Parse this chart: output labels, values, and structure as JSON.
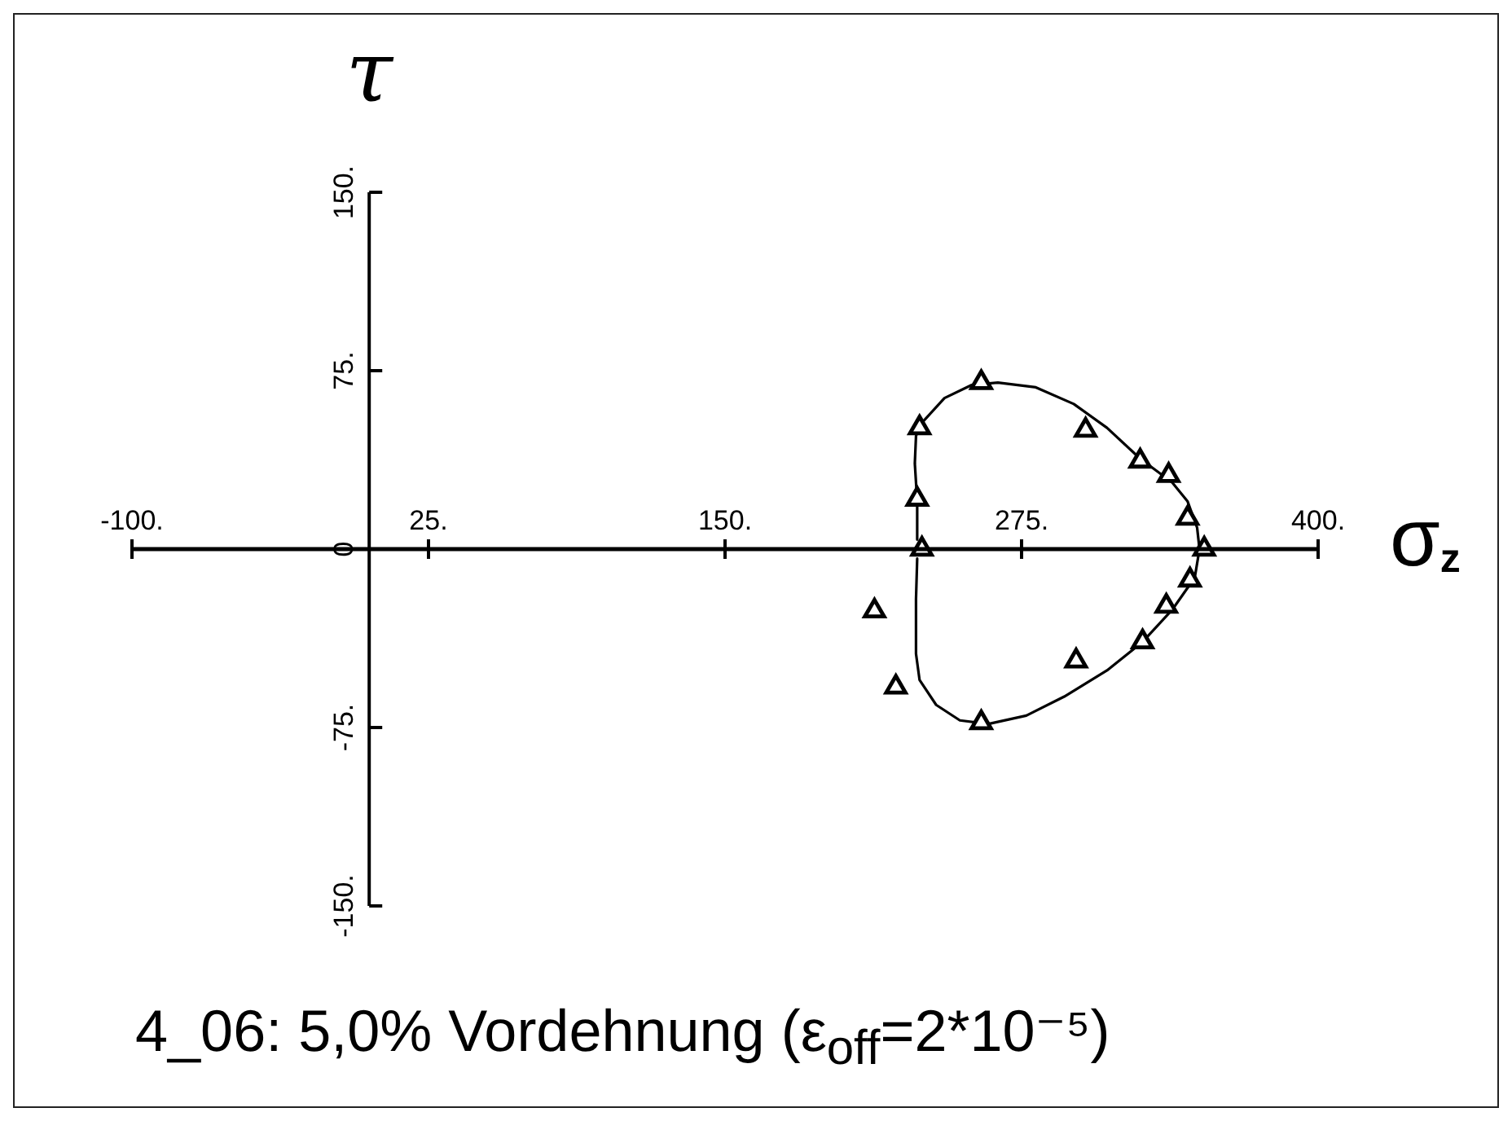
{
  "chart_data": {
    "type": "scatter",
    "title": "4_06: 5,0% Vordehnung (ε$_{off}$=2*10⁻⁵)",
    "xlabel": "σ$_{z}$",
    "ylabel": "τ",
    "xlim": [
      -100,
      400
    ],
    "ylim": [
      -150,
      150
    ],
    "xticks": [
      {
        "value": -100,
        "label": "-100."
      },
      {
        "value": 25,
        "label": "25."
      },
      {
        "value": 150,
        "label": "150."
      },
      {
        "value": 275,
        "label": "275."
      },
      {
        "value": 400,
        "label": "400."
      }
    ],
    "yticks": [
      {
        "value": -150,
        "label": "-150."
      },
      {
        "value": -75,
        "label": "-75."
      },
      0,
      {
        "value": 75,
        "label": "75."
      },
      {
        "value": 150,
        "label": "150."
      }
    ],
    "series": [
      {
        "type": "line",
        "color": "#000000",
        "marker": "none",
        "line_style": "solid",
        "x": [
          231,
          231,
          230,
          230.5,
          232,
          242.5,
          254,
          265,
          281,
          297,
          311,
          325,
          338.5,
          345,
          349,
          350,
          348,
          338.5,
          326,
          311,
          293,
          277,
          261,
          249,
          239,
          232,
          230.5,
          230.5,
          231
        ],
        "values": [
          4,
          20,
          36,
          47.5,
          52,
          63.5,
          69,
          70,
          68,
          61,
          51,
          38,
          28,
          20,
          9,
          0,
          -12,
          -25.5,
          -39,
          -51,
          -62,
          -70,
          -73.5,
          -72,
          -65.5,
          -55,
          -44,
          -21,
          -4
        ]
      },
      {
        "type": "scatter",
        "color": "#000000",
        "marker": "triangle",
        "x": [
          258,
          232,
          302,
          325,
          337,
          231,
          345,
          233,
          352,
          346,
          336,
          326,
          298,
          213,
          222,
          258
        ],
        "values": [
          70,
          51,
          50,
          37,
          31,
          21,
          13,
          0,
          0,
          -13,
          -24,
          -39,
          -47,
          -26,
          -58,
          -73
        ]
      }
    ]
  }
}
